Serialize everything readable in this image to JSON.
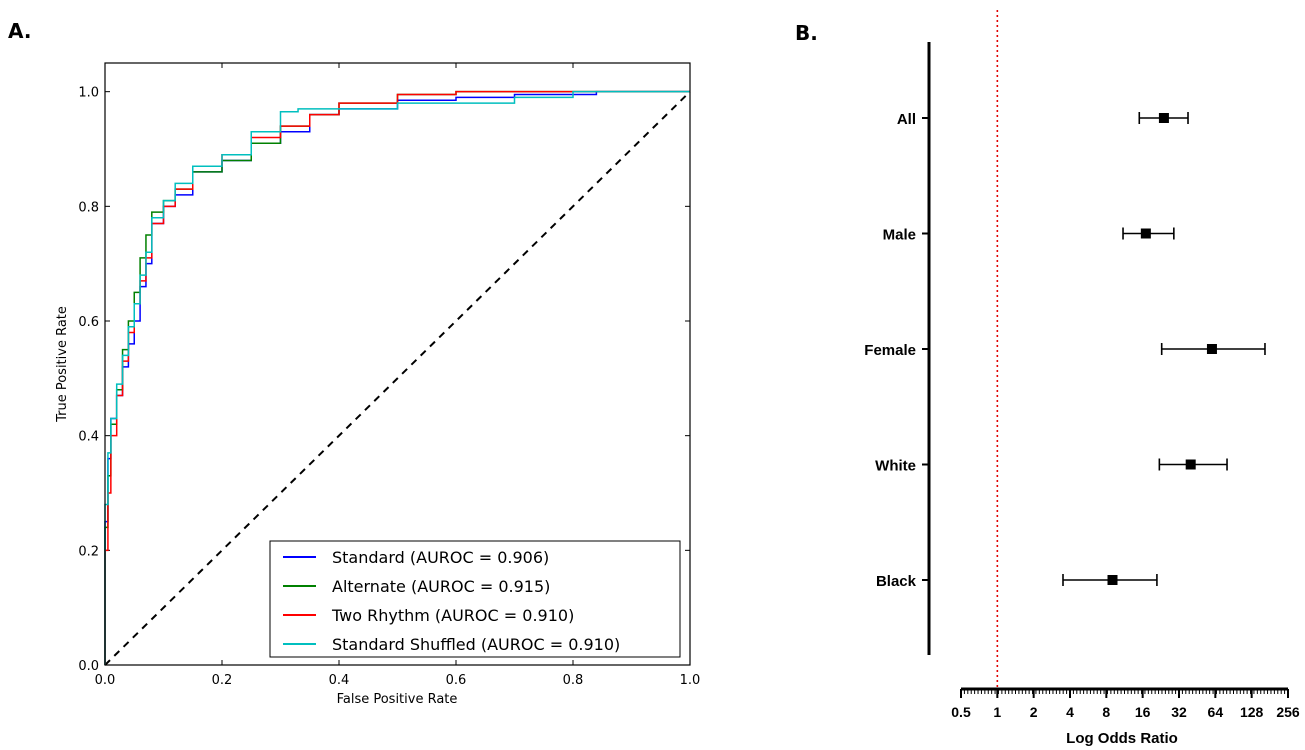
{
  "chart_data": [
    {
      "panel": "A.",
      "type": "line",
      "xlabel": "False Positive Rate",
      "ylabel": "True Positive Rate",
      "xlim": [
        0,
        1
      ],
      "ylim": [
        0,
        1.05
      ],
      "x_ticks": [
        "0.0",
        "0.2",
        "0.4",
        "0.6",
        "0.8",
        "1.0"
      ],
      "y_ticks": [
        "0.0",
        "0.2",
        "0.4",
        "0.6",
        "0.8",
        "1.0"
      ],
      "legend_position": "bottom-right",
      "series": [
        {
          "name": "Standard (AUROC = 0.906)",
          "color": "#0000ff",
          "x": [
            0,
            0.005,
            0.01,
            0.02,
            0.03,
            0.04,
            0.05,
            0.06,
            0.07,
            0.08,
            0.1,
            0.12,
            0.15,
            0.2,
            0.25,
            0.3,
            0.35,
            0.4,
            0.5,
            0.6,
            0.7,
            0.84,
            1.0
          ],
          "y": [
            0,
            0.25,
            0.36,
            0.43,
            0.47,
            0.52,
            0.56,
            0.6,
            0.66,
            0.7,
            0.77,
            0.8,
            0.82,
            0.86,
            0.88,
            0.91,
            0.93,
            0.96,
            0.97,
            0.985,
            0.99,
            0.995,
            1.0
          ]
        },
        {
          "name": "Alternate (AUROC = 0.915)",
          "color": "#008000",
          "x": [
            0,
            0.005,
            0.01,
            0.02,
            0.03,
            0.04,
            0.05,
            0.06,
            0.07,
            0.08,
            0.1,
            0.12,
            0.15,
            0.2,
            0.25,
            0.3,
            0.35,
            0.4,
            0.5,
            0.6,
            0.72,
            1.0
          ],
          "y": [
            0,
            0.24,
            0.33,
            0.42,
            0.48,
            0.55,
            0.6,
            0.65,
            0.71,
            0.75,
            0.79,
            0.81,
            0.83,
            0.86,
            0.88,
            0.91,
            0.94,
            0.96,
            0.98,
            0.995,
            1.0,
            1.0
          ]
        },
        {
          "name": "Two Rhythm (AUROC = 0.910)",
          "color": "#ff0000",
          "x": [
            0,
            0.005,
            0.01,
            0.02,
            0.03,
            0.04,
            0.05,
            0.06,
            0.07,
            0.08,
            0.1,
            0.12,
            0.15,
            0.2,
            0.25,
            0.3,
            0.35,
            0.4,
            0.5,
            0.6,
            0.72,
            1.0
          ],
          "y": [
            0,
            0.2,
            0.3,
            0.4,
            0.47,
            0.53,
            0.58,
            0.63,
            0.67,
            0.71,
            0.77,
            0.8,
            0.83,
            0.87,
            0.89,
            0.92,
            0.94,
            0.96,
            0.98,
            0.995,
            1.0,
            1.0
          ]
        },
        {
          "name": "Standard Shuffled (AUROC = 0.910)",
          "color": "#00bfbf",
          "x": [
            0,
            0.005,
            0.01,
            0.02,
            0.03,
            0.04,
            0.05,
            0.06,
            0.07,
            0.08,
            0.1,
            0.12,
            0.15,
            0.2,
            0.25,
            0.3,
            0.33,
            0.4,
            0.5,
            0.6,
            0.7,
            0.8,
            0.9,
            1.0
          ],
          "y": [
            0,
            0.28,
            0.37,
            0.43,
            0.49,
            0.54,
            0.59,
            0.63,
            0.68,
            0.72,
            0.78,
            0.81,
            0.84,
            0.87,
            0.89,
            0.93,
            0.965,
            0.97,
            0.97,
            0.98,
            0.98,
            0.99,
            1.0,
            1.0
          ]
        }
      ],
      "reference_line": {
        "style": "dashed",
        "color": "#000000",
        "x": [
          0,
          1
        ],
        "y": [
          0,
          1
        ]
      }
    },
    {
      "panel": "B.",
      "type": "forest",
      "xlabel": "Log Odds Ratio",
      "x_scale": "log2",
      "xlim": [
        0.5,
        256
      ],
      "x_ticks": [
        "0.5",
        "1",
        "2",
        "4",
        "8",
        "16",
        "32",
        "64",
        "128",
        "256"
      ],
      "reference_value": 1,
      "reference_line": {
        "style": "dotted",
        "color": "#e00000"
      },
      "categories": [
        "All",
        "Male",
        "Female",
        "White",
        "Black"
      ],
      "estimates": [
        24,
        17,
        60,
        40,
        9
      ],
      "lower": [
        15,
        11,
        23,
        22,
        3.5
      ],
      "upper": [
        38,
        29,
        165,
        80,
        21
      ]
    }
  ]
}
